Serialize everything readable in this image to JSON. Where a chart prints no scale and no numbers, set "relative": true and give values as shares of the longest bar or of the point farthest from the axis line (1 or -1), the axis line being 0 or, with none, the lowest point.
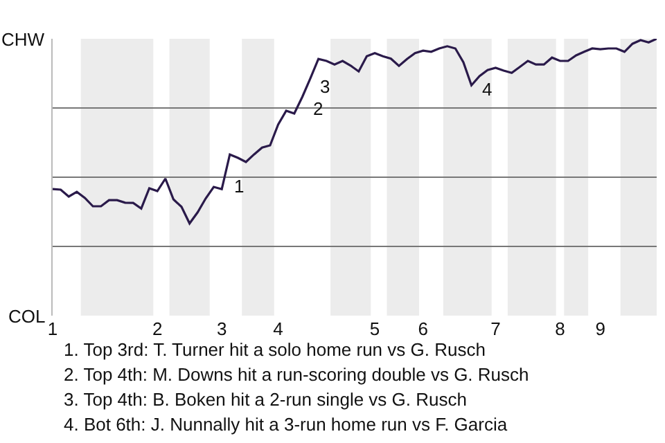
{
  "chart_data": {
    "type": "line",
    "color": "#2a1a4a",
    "relative": true,
    "categories": [
      "1",
      null,
      null,
      null,
      null,
      null,
      null,
      null,
      null,
      null,
      null,
      null,
      null,
      "2",
      null,
      null,
      null,
      null,
      null,
      null,
      null,
      "3",
      null,
      null,
      null,
      null,
      null,
      null,
      "4",
      null,
      null,
      null,
      null,
      null,
      null,
      null,
      null,
      null,
      null,
      null,
      "5",
      null,
      null,
      null,
      null,
      null,
      "6",
      null,
      null,
      null,
      null,
      null,
      null,
      null,
      null,
      "7",
      null,
      null,
      null,
      null,
      null,
      null,
      null,
      "8",
      null,
      null,
      null,
      null,
      "9",
      null,
      null,
      null,
      null,
      null,
      null,
      null
    ],
    "values": [
      0.457,
      0.455,
      0.43,
      0.447,
      0.425,
      0.395,
      0.395,
      0.417,
      0.417,
      0.408,
      0.407,
      0.387,
      0.46,
      0.45,
      0.495,
      0.42,
      0.393,
      0.333,
      0.373,
      0.423,
      0.465,
      0.457,
      0.582,
      0.57,
      0.555,
      0.582,
      0.607,
      0.615,
      0.69,
      0.74,
      0.73,
      0.79,
      0.857,
      0.927,
      0.92,
      0.907,
      0.92,
      0.903,
      0.882,
      0.937,
      0.948,
      0.937,
      0.928,
      0.902,
      0.927,
      0.948,
      0.957,
      0.953,
      0.965,
      0.973,
      0.965,
      0.915,
      0.832,
      0.865,
      0.887,
      0.895,
      0.885,
      0.877,
      0.898,
      0.92,
      0.907,
      0.907,
      0.932,
      0.92,
      0.92,
      0.94,
      0.953,
      0.965,
      0.962,
      0.965,
      0.965,
      0.953,
      0.982,
      0.995,
      0.987,
      1
    ],
    "grid": "y",
    "marker": "none",
    "line_style": "solid",
    "annotations": [
      "CHW",
      "COL",
      "1",
      "2",
      "3",
      "4",
      "1. Top 3rd: T. Turner hit a solo home run vs G. Rusch",
      "2. Top 4th: M. Downs hit a run-scoring double vs G. Rusch",
      "3. Top 4th: B. Boken hit a 2-run single vs G. Rusch",
      "4. Bot 6th: J. Nunnally hit a 3-run home run vs F. Garcia"
    ]
  }
}
